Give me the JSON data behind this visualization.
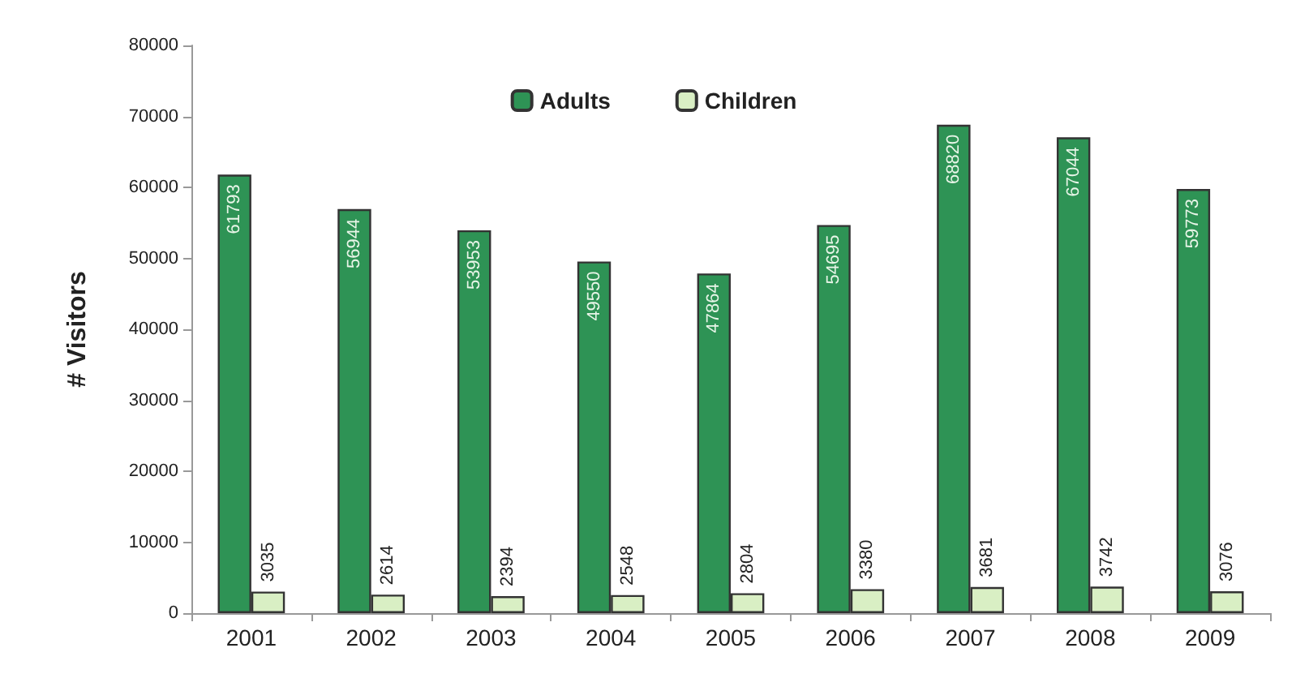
{
  "chart_data": {
    "type": "bar",
    "ylabel": "# Visitors",
    "categories": [
      "2001",
      "2002",
      "2003",
      "2004",
      "2005",
      "2006",
      "2007",
      "2008",
      "2009"
    ],
    "series": [
      {
        "name": "Adults",
        "color": "#2e9355",
        "values": [
          61793,
          56944,
          53953,
          49550,
          47864,
          54695,
          68820,
          67044,
          59773
        ]
      },
      {
        "name": "Children",
        "color": "#d9efc4",
        "values": [
          3035,
          2614,
          2394,
          2548,
          2804,
          3380,
          3681,
          3742,
          3076
        ]
      }
    ],
    "ylim": [
      0,
      80000
    ],
    "yticks": [
      0,
      10000,
      20000,
      30000,
      40000,
      50000,
      60000,
      70000,
      80000
    ],
    "data_labels": true,
    "grid": false,
    "legend": "top"
  }
}
